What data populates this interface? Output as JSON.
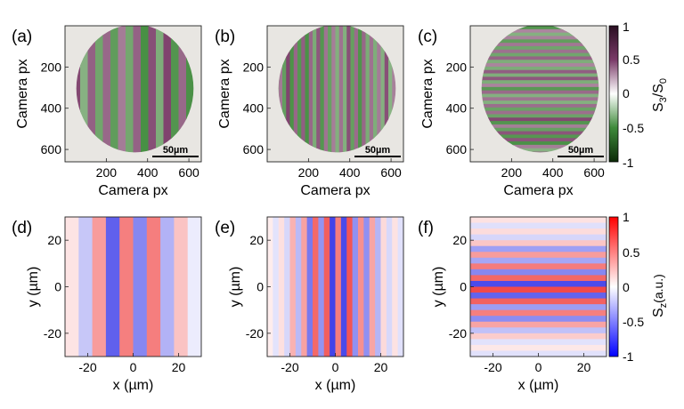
{
  "chart_data": [
    {
      "type": "heatmap",
      "panel": "(a)",
      "pattern": "vertical",
      "fringes": 9,
      "shape": "disc",
      "xlabel": "Camera px",
      "ylabel": "Camera px",
      "xticks": [
        "200",
        "400",
        "600"
      ],
      "yticks": [
        "200",
        "400",
        "600"
      ],
      "xlim": [
        0,
        660
      ],
      "ylim": [
        660,
        0
      ],
      "scale_bar": "50µm",
      "colormap": "S3/S0 (green-white-purple)"
    },
    {
      "type": "heatmap",
      "panel": "(b)",
      "pattern": "vertical",
      "fringes": 18,
      "shape": "disc",
      "xlabel": "Camera px",
      "ylabel": "Camera px",
      "xticks": [
        "200",
        "400",
        "600"
      ],
      "yticks": [
        "200",
        "400",
        "600"
      ],
      "xlim": [
        0,
        660
      ],
      "ylim": [
        660,
        0
      ],
      "scale_bar": "50µm",
      "colormap": "S3/S0 (green-white-purple)"
    },
    {
      "type": "heatmap",
      "panel": "(c)",
      "pattern": "horizontal",
      "fringes": 20,
      "shape": "disc",
      "xlabel": "Camera px",
      "ylabel": "Camera px",
      "xticks": [
        "200",
        "400",
        "600"
      ],
      "yticks": [
        "200",
        "400",
        "600"
      ],
      "xlim": [
        0,
        660
      ],
      "ylim": [
        660,
        0
      ],
      "scale_bar": "50µm",
      "colormap": "S3/S0 (green-white-purple)"
    },
    {
      "type": "heatmap",
      "panel": "(d)",
      "pattern": "vertical",
      "fringes": 5,
      "shape": "square",
      "xlabel": "x (µm)",
      "ylabel": "y (µm)",
      "xticks": [
        "-20",
        "0",
        "20"
      ],
      "yticks": [
        "20",
        "0",
        "-20"
      ],
      "xlim": [
        -30,
        30
      ],
      "ylim": [
        -30,
        30
      ],
      "colormap": "Sz (blue-white-red)"
    },
    {
      "type": "heatmap",
      "panel": "(e)",
      "pattern": "vertical",
      "fringes": 12,
      "shape": "square",
      "xlabel": "x (µm)",
      "ylabel": "y (µm)",
      "xticks": [
        "-20",
        "0",
        "20"
      ],
      "yticks": [
        "20",
        "0",
        "-20"
      ],
      "xlim": [
        -30,
        30
      ],
      "ylim": [
        -30,
        30
      ],
      "colormap": "Sz (blue-white-red)"
    },
    {
      "type": "heatmap",
      "panel": "(f)",
      "pattern": "horizontal",
      "fringes": 12,
      "shape": "square",
      "xlabel": "x (µm)",
      "ylabel": "y (µm)",
      "xticks": [
        "-20",
        "0",
        "20"
      ],
      "yticks": [
        "20",
        "0",
        "-20"
      ],
      "xlim": [
        -30,
        30
      ],
      "ylim": [
        -30,
        30
      ],
      "colormap": "Sz (blue-white-red)"
    }
  ],
  "colorbars": {
    "top": {
      "label_main": "S",
      "label_sub1": "3",
      "label_mid": "/S",
      "label_sub2": "0",
      "ticks": [
        "1",
        "0.5",
        "0",
        "-0.5",
        "-1"
      ],
      "stops": [
        "#2a0f22",
        "#7a3a68",
        "#ffffff",
        "#3e8a3a",
        "#0c2a08"
      ]
    },
    "bottom": {
      "label_main": "S",
      "label_sub": "z",
      "label_rest": "(a.u.)",
      "ticks": [
        "1",
        "0.5",
        "0",
        "-0.5",
        "-1"
      ],
      "stops": [
        "#ff0000",
        "#ffffff",
        "#0000ff"
      ]
    }
  }
}
